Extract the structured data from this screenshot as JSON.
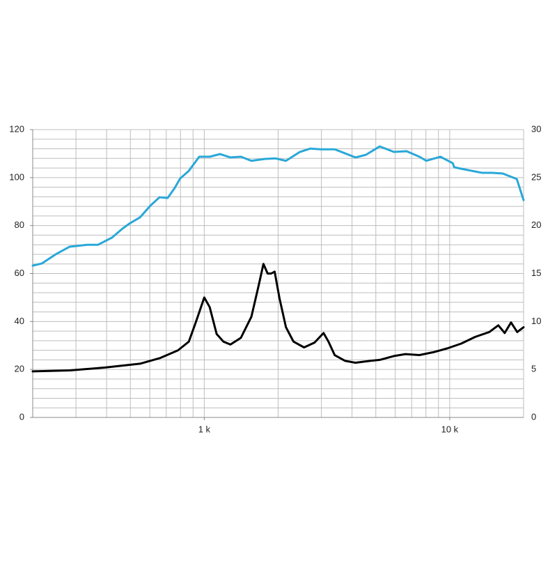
{
  "chart_data": {
    "type": "line",
    "log_x": true,
    "grid": true,
    "xlim": [
      200,
      20000
    ],
    "xticks": [
      {
        "value": 1000,
        "label": "1 k"
      },
      {
        "value": 10000,
        "label": "10 k"
      }
    ],
    "xgrid": [
      200,
      300,
      400,
      500,
      600,
      700,
      800,
      900,
      1000,
      2000,
      3000,
      4000,
      5000,
      6000,
      7000,
      8000,
      9000,
      10000,
      20000
    ],
    "ylim": [
      0,
      120
    ],
    "yticks": [
      0,
      20,
      40,
      60,
      80,
      100,
      120
    ],
    "ygrid": [
      0,
      4,
      8,
      12,
      16,
      20,
      24,
      28,
      32,
      36,
      40,
      44,
      48,
      52,
      56,
      60,
      64,
      68,
      72,
      76,
      80,
      84,
      88,
      92,
      96,
      100,
      104,
      108,
      112,
      116,
      120
    ],
    "y2lim": [
      0,
      30
    ],
    "y2ticks": [
      0,
      5,
      10,
      15,
      20,
      25,
      30
    ],
    "series": [
      {
        "color": "#29a8d8",
        "x": [
          200,
          218,
          248,
          283,
          334,
          369,
          421,
          464,
          495,
          547,
          603,
          657,
          709,
          757,
          797,
          865,
          954,
          1052,
          1159,
          1278,
          1410,
          1556,
          1772,
          1952,
          2152,
          2452,
          2704,
          2981,
          3399,
          3748,
          4131,
          4556,
          5190,
          5922,
          6674,
          7525,
          8031,
          9158,
          10292,
          10431,
          11495,
          13535,
          14925,
          16458,
          18767,
          20000
        ],
        "values": [
          63.3,
          64.2,
          68,
          71.2,
          72,
          72,
          75,
          78.7,
          80.8,
          83.4,
          88.3,
          91.8,
          91.5,
          95.6,
          99.6,
          102.8,
          108.7,
          108.7,
          109.8,
          108.4,
          108.7,
          107,
          107.8,
          108,
          107,
          110.7,
          112.1,
          111.8,
          111.8,
          110.1,
          108.4,
          109.5,
          113,
          110.7,
          111,
          108.7,
          107,
          108.7,
          106,
          104.3,
          103.4,
          102,
          102,
          101.7,
          99.4,
          90.6
        ]
      },
      {
        "color": "#000000",
        "axis": "y2",
        "x": [
          200,
          283,
          394,
          547,
          662,
          782,
          865,
          923,
          1000,
          1052,
          1123,
          1197,
          1278,
          1410,
          1556,
          1664,
          1742,
          1812,
          1874,
          1935,
          2026,
          2152,
          2310,
          2550,
          2813,
          3062,
          3207,
          3399,
          3748,
          4131,
          4754,
          5190,
          5922,
          6600,
          7525,
          8580,
          9780,
          11148,
          12710,
          14500,
          15780,
          16750,
          17780,
          18840,
          20000
        ],
        "values": [
          4.8,
          4.9,
          5.2,
          5.6,
          6.2,
          7,
          7.9,
          9.9,
          12.5,
          11.5,
          8.7,
          7.9,
          7.6,
          8.3,
          10.5,
          13.7,
          16,
          15,
          15,
          15.2,
          12.4,
          9.4,
          7.9,
          7.3,
          7.8,
          8.8,
          7.9,
          6.5,
          5.9,
          5.7,
          5.9,
          6,
          6.4,
          6.6,
          6.5,
          6.8,
          7.2,
          7.7,
          8.4,
          8.9,
          9.6,
          8.8,
          9.9,
          8.9,
          9.4
        ]
      }
    ]
  }
}
